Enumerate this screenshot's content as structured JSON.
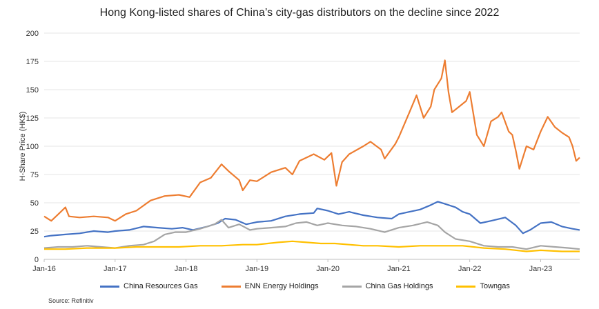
{
  "chart_data": {
    "type": "line",
    "title": "Hong Kong-listed shares of China’s city-gas distributors on the decline since 2022",
    "ylabel": "H-Share Price (HK$)",
    "xlabel": "",
    "ylim": [
      0,
      200
    ],
    "yticks": [
      0,
      25,
      50,
      75,
      100,
      125,
      150,
      175,
      200
    ],
    "xlim": [
      2016.0,
      2023.55
    ],
    "xticks": [
      {
        "x": 2016,
        "label": "Jan-16"
      },
      {
        "x": 2017,
        "label": "Jan-17"
      },
      {
        "x": 2018,
        "label": "Jan-18"
      },
      {
        "x": 2019,
        "label": "Jan-19"
      },
      {
        "x": 2020,
        "label": "Jan-20"
      },
      {
        "x": 2021,
        "label": "Jan-21"
      },
      {
        "x": 2022,
        "label": "Jan-22"
      },
      {
        "x": 2023,
        "label": "Jan-23"
      }
    ],
    "grid": "horizontal",
    "legend_position": "bottom",
    "source": "Source: Refinitiv",
    "series": [
      {
        "name": "China Resources Gas",
        "color": "#4472C4",
        "points": [
          [
            2016.0,
            20
          ],
          [
            2016.1,
            21
          ],
          [
            2016.3,
            22
          ],
          [
            2016.5,
            23
          ],
          [
            2016.7,
            25
          ],
          [
            2016.9,
            24
          ],
          [
            2017.0,
            25
          ],
          [
            2017.2,
            26
          ],
          [
            2017.4,
            29
          ],
          [
            2017.6,
            28
          ],
          [
            2017.8,
            27
          ],
          [
            2017.95,
            28
          ],
          [
            2018.1,
            26
          ],
          [
            2018.3,
            29
          ],
          [
            2018.45,
            32
          ],
          [
            2018.55,
            36
          ],
          [
            2018.7,
            35
          ],
          [
            2018.85,
            31
          ],
          [
            2019.0,
            33
          ],
          [
            2019.2,
            34
          ],
          [
            2019.4,
            38
          ],
          [
            2019.6,
            40
          ],
          [
            2019.8,
            41
          ],
          [
            2019.85,
            45
          ],
          [
            2020.0,
            43
          ],
          [
            2020.15,
            40
          ],
          [
            2020.3,
            42
          ],
          [
            2020.5,
            39
          ],
          [
            2020.7,
            37
          ],
          [
            2020.9,
            36
          ],
          [
            2021.0,
            40
          ],
          [
            2021.15,
            42
          ],
          [
            2021.3,
            44
          ],
          [
            2021.45,
            48
          ],
          [
            2021.55,
            51
          ],
          [
            2021.65,
            49
          ],
          [
            2021.8,
            46
          ],
          [
            2021.9,
            42
          ],
          [
            2022.0,
            40
          ],
          [
            2022.15,
            32
          ],
          [
            2022.3,
            34
          ],
          [
            2022.5,
            37
          ],
          [
            2022.65,
            30
          ],
          [
            2022.75,
            23
          ],
          [
            2022.85,
            26
          ],
          [
            2023.0,
            32
          ],
          [
            2023.15,
            33
          ],
          [
            2023.3,
            29
          ],
          [
            2023.45,
            27
          ],
          [
            2023.55,
            26
          ]
        ]
      },
      {
        "name": "ENN Energy Holdings",
        "color": "#ED7D31",
        "points": [
          [
            2016.0,
            38
          ],
          [
            2016.1,
            34
          ],
          [
            2016.2,
            40
          ],
          [
            2016.3,
            46
          ],
          [
            2016.35,
            38
          ],
          [
            2016.5,
            37
          ],
          [
            2016.7,
            38
          ],
          [
            2016.9,
            37
          ],
          [
            2017.0,
            34
          ],
          [
            2017.15,
            40
          ],
          [
            2017.3,
            43
          ],
          [
            2017.5,
            52
          ],
          [
            2017.7,
            56
          ],
          [
            2017.9,
            57
          ],
          [
            2018.05,
            55
          ],
          [
            2018.2,
            68
          ],
          [
            2018.35,
            72
          ],
          [
            2018.5,
            84
          ],
          [
            2018.6,
            78
          ],
          [
            2018.75,
            70
          ],
          [
            2018.8,
            61
          ],
          [
            2018.9,
            70
          ],
          [
            2019.0,
            69
          ],
          [
            2019.2,
            77
          ],
          [
            2019.4,
            81
          ],
          [
            2019.5,
            75
          ],
          [
            2019.6,
            87
          ],
          [
            2019.8,
            93
          ],
          [
            2019.95,
            88
          ],
          [
            2020.05,
            94
          ],
          [
            2020.12,
            65
          ],
          [
            2020.2,
            86
          ],
          [
            2020.3,
            93
          ],
          [
            2020.5,
            100
          ],
          [
            2020.6,
            104
          ],
          [
            2020.75,
            97
          ],
          [
            2020.8,
            89
          ],
          [
            2020.95,
            102
          ],
          [
            2021.0,
            108
          ],
          [
            2021.15,
            130
          ],
          [
            2021.25,
            145
          ],
          [
            2021.35,
            125
          ],
          [
            2021.45,
            135
          ],
          [
            2021.5,
            150
          ],
          [
            2021.6,
            160
          ],
          [
            2021.65,
            176
          ],
          [
            2021.7,
            148
          ],
          [
            2021.75,
            130
          ],
          [
            2021.85,
            135
          ],
          [
            2021.95,
            140
          ],
          [
            2022.0,
            148
          ],
          [
            2022.1,
            110
          ],
          [
            2022.2,
            100
          ],
          [
            2022.3,
            122
          ],
          [
            2022.4,
            126
          ],
          [
            2022.45,
            130
          ],
          [
            2022.55,
            113
          ],
          [
            2022.6,
            110
          ],
          [
            2022.65,
            96
          ],
          [
            2022.7,
            80
          ],
          [
            2022.8,
            100
          ],
          [
            2022.9,
            97
          ],
          [
            2023.0,
            113
          ],
          [
            2023.1,
            126
          ],
          [
            2023.2,
            117
          ],
          [
            2023.3,
            112
          ],
          [
            2023.4,
            108
          ],
          [
            2023.45,
            100
          ],
          [
            2023.5,
            87
          ],
          [
            2023.55,
            90
          ]
        ]
      },
      {
        "name": "China Gas Holdings",
        "color": "#A5A5A5",
        "points": [
          [
            2016.0,
            10
          ],
          [
            2016.2,
            11
          ],
          [
            2016.4,
            11
          ],
          [
            2016.6,
            12
          ],
          [
            2016.8,
            11
          ],
          [
            2017.0,
            10
          ],
          [
            2017.2,
            12
          ],
          [
            2017.4,
            13
          ],
          [
            2017.55,
            16
          ],
          [
            2017.7,
            22
          ],
          [
            2017.85,
            24
          ],
          [
            2018.0,
            24
          ],
          [
            2018.2,
            27
          ],
          [
            2018.4,
            31
          ],
          [
            2018.5,
            35
          ],
          [
            2018.6,
            28
          ],
          [
            2018.75,
            31
          ],
          [
            2018.9,
            26
          ],
          [
            2019.0,
            27
          ],
          [
            2019.2,
            28
          ],
          [
            2019.4,
            29
          ],
          [
            2019.55,
            32
          ],
          [
            2019.7,
            33
          ],
          [
            2019.85,
            30
          ],
          [
            2020.0,
            32
          ],
          [
            2020.2,
            30
          ],
          [
            2020.4,
            29
          ],
          [
            2020.6,
            27
          ],
          [
            2020.8,
            24
          ],
          [
            2021.0,
            28
          ],
          [
            2021.2,
            30
          ],
          [
            2021.4,
            33
          ],
          [
            2021.55,
            30
          ],
          [
            2021.65,
            24
          ],
          [
            2021.8,
            18
          ],
          [
            2022.0,
            16
          ],
          [
            2022.2,
            12
          ],
          [
            2022.4,
            11
          ],
          [
            2022.6,
            11
          ],
          [
            2022.8,
            9
          ],
          [
            2023.0,
            12
          ],
          [
            2023.2,
            11
          ],
          [
            2023.4,
            10
          ],
          [
            2023.55,
            9
          ]
        ]
      },
      {
        "name": "Towngas",
        "color": "#FFC000",
        "points": [
          [
            2016.0,
            9
          ],
          [
            2016.3,
            9
          ],
          [
            2016.6,
            10
          ],
          [
            2016.9,
            10
          ],
          [
            2017.0,
            10
          ],
          [
            2017.3,
            11
          ],
          [
            2017.6,
            11
          ],
          [
            2017.9,
            11
          ],
          [
            2018.2,
            12
          ],
          [
            2018.5,
            12
          ],
          [
            2018.8,
            13
          ],
          [
            2019.0,
            13
          ],
          [
            2019.3,
            15
          ],
          [
            2019.5,
            16
          ],
          [
            2019.7,
            15
          ],
          [
            2019.9,
            14
          ],
          [
            2020.1,
            14
          ],
          [
            2020.3,
            13
          ],
          [
            2020.5,
            12
          ],
          [
            2020.7,
            12
          ],
          [
            2021.0,
            11
          ],
          [
            2021.3,
            12
          ],
          [
            2021.6,
            12
          ],
          [
            2021.9,
            12
          ],
          [
            2022.2,
            10
          ],
          [
            2022.5,
            9
          ],
          [
            2022.8,
            7
          ],
          [
            2023.0,
            8
          ],
          [
            2023.3,
            7
          ],
          [
            2023.55,
            7
          ]
        ]
      }
    ]
  }
}
